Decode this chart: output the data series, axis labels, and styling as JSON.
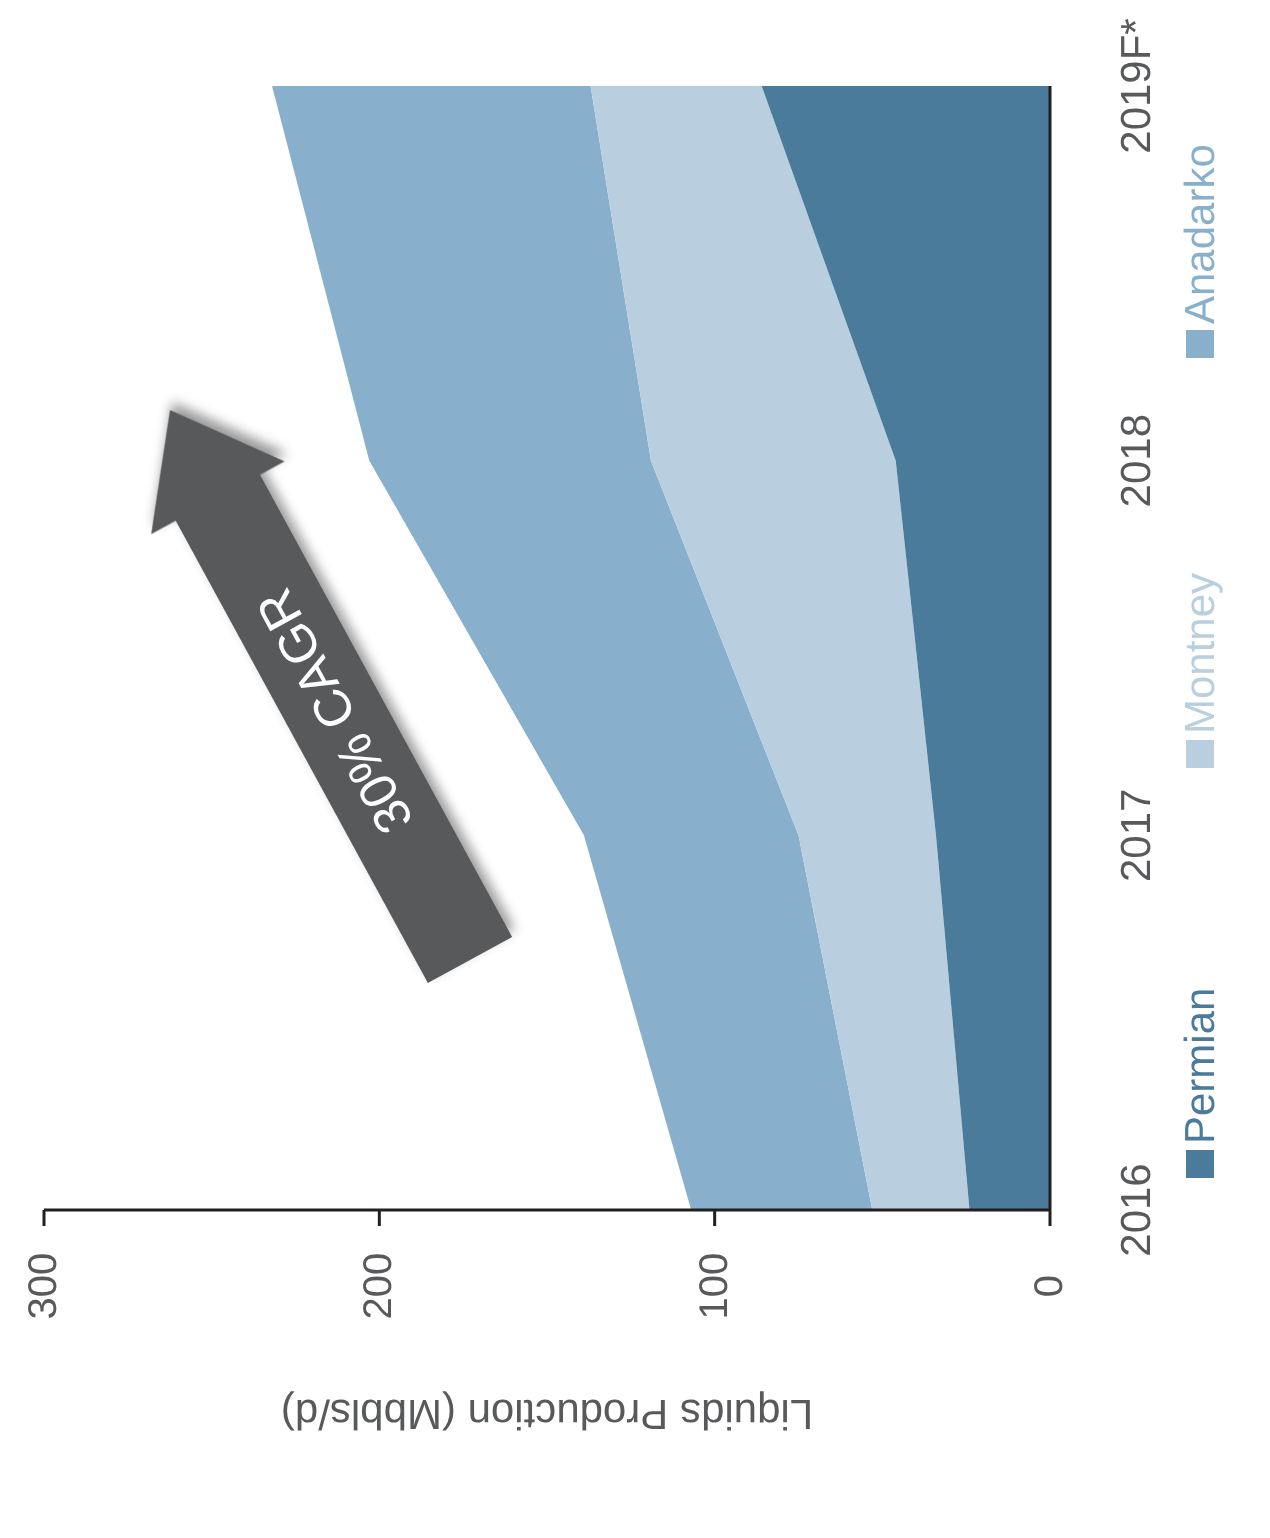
{
  "chart_data": {
    "type": "area",
    "stacked": true,
    "orientation": "horizontal",
    "xlabel": "Liquids Production (Mbbls/d)",
    "categories": [
      "2019F*",
      "2018",
      "2017",
      "2016"
    ],
    "xlim": [
      300,
      0
    ],
    "xticks": [
      0,
      100,
      200,
      300
    ],
    "legend": "right",
    "annotations": [
      "30% CAGR"
    ],
    "series": [
      {
        "name": "Permian",
        "color": "#4a7b9a",
        "values": [
          86,
          46,
          34,
          24
        ]
      },
      {
        "name": "Montney",
        "color": "#b9cfe0",
        "values": [
          51,
          73,
          41,
          29
        ]
      },
      {
        "name": "Anadarko",
        "color": "#88b0cc",
        "values": [
          95,
          84,
          64,
          54
        ]
      }
    ]
  }
}
